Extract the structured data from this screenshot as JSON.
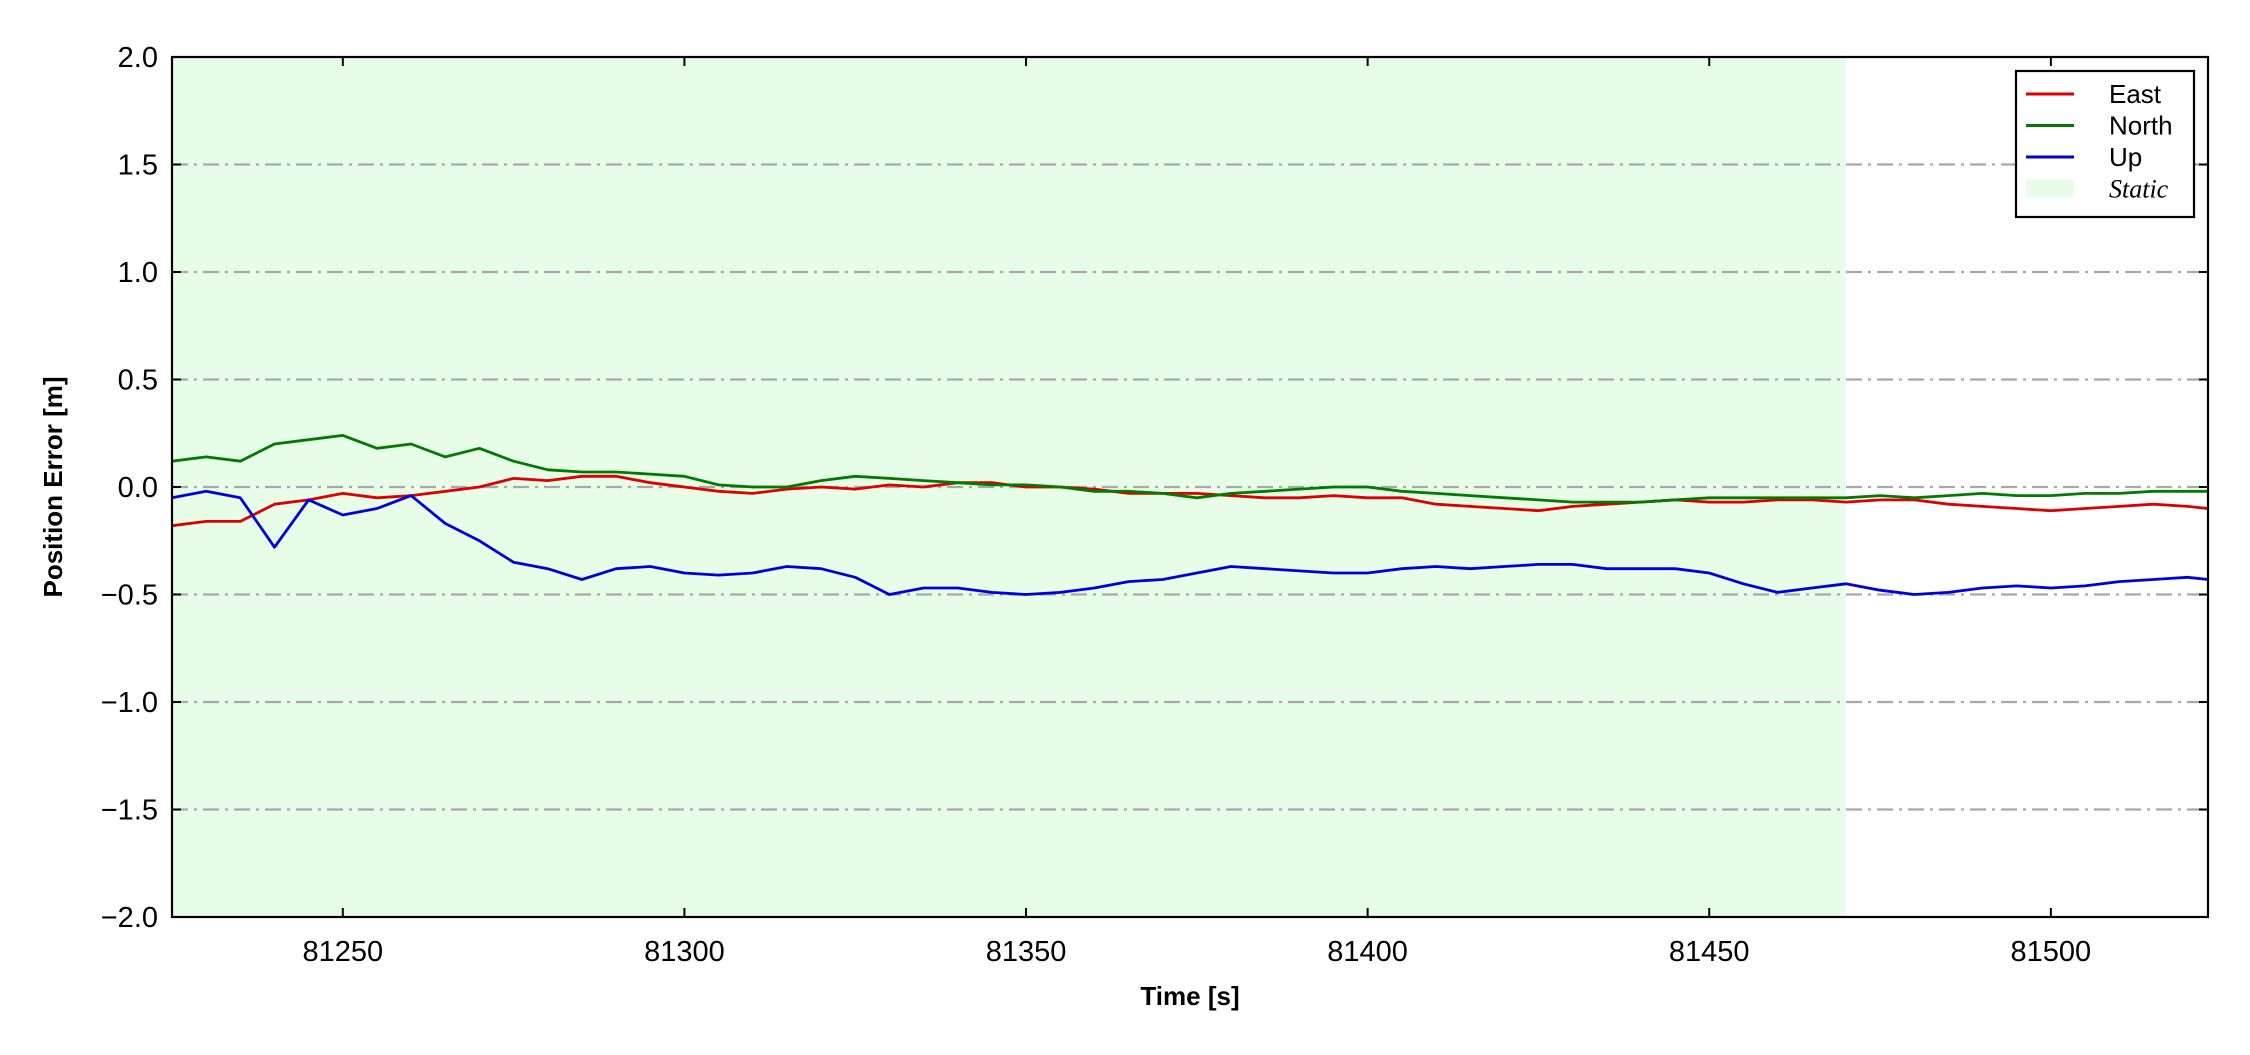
{
  "chart_data": {
    "type": "line",
    "title": "",
    "xlabel": "Time [s]",
    "ylabel": "Position Error [m]",
    "xlim": [
      81225,
      81523
    ],
    "ylim": [
      -2.0,
      2.0
    ],
    "x_ticks": [
      81250,
      81300,
      81350,
      81400,
      81450,
      81500
    ],
    "x_tick_labels": [
      "81250",
      "81300",
      "81350",
      "81400",
      "81450",
      "81500"
    ],
    "y_ticks": [
      -2.0,
      -1.5,
      -1.0,
      -0.5,
      0.0,
      0.5,
      1.0,
      1.5,
      2.0
    ],
    "y_tick_labels": [
      "−2.0",
      "−1.5",
      "−1.0",
      "−0.5",
      "0.0",
      "0.5",
      "1.0",
      "1.5",
      "2.0"
    ],
    "grid": "horizontal, dash-dot, gray",
    "legend_position": "top-right",
    "shaded_region": {
      "name": "Static",
      "x_range": [
        81225,
        81470
      ],
      "color": "#e8fde8"
    },
    "x": [
      81225,
      81230,
      81235,
      81240,
      81245,
      81250,
      81255,
      81260,
      81265,
      81270,
      81275,
      81280,
      81285,
      81290,
      81295,
      81300,
      81305,
      81310,
      81315,
      81320,
      81325,
      81330,
      81335,
      81340,
      81345,
      81350,
      81355,
      81360,
      81365,
      81370,
      81375,
      81380,
      81385,
      81390,
      81395,
      81400,
      81405,
      81410,
      81415,
      81420,
      81425,
      81430,
      81435,
      81440,
      81445,
      81450,
      81455,
      81460,
      81465,
      81470,
      81475,
      81480,
      81485,
      81490,
      81495,
      81500,
      81505,
      81510,
      81515,
      81520,
      81523
    ],
    "series": [
      {
        "name": "East",
        "color": "#dd0000",
        "values": [
          -0.18,
          -0.16,
          -0.16,
          -0.08,
          -0.06,
          -0.03,
          -0.05,
          -0.04,
          -0.02,
          0.0,
          0.04,
          0.03,
          0.05,
          0.05,
          0.02,
          0.0,
          -0.02,
          -0.03,
          -0.01,
          0.0,
          -0.01,
          0.01,
          0.0,
          0.02,
          0.02,
          0.0,
          0.0,
          -0.01,
          -0.03,
          -0.03,
          -0.03,
          -0.04,
          -0.05,
          -0.05,
          -0.04,
          -0.05,
          -0.05,
          -0.08,
          -0.09,
          -0.1,
          -0.11,
          -0.09,
          -0.08,
          -0.07,
          -0.06,
          -0.07,
          -0.07,
          -0.06,
          -0.06,
          -0.07,
          -0.06,
          -0.06,
          -0.08,
          -0.09,
          -0.1,
          -0.11,
          -0.1,
          -0.09,
          -0.08,
          -0.09,
          -0.1
        ]
      },
      {
        "name": "North",
        "color": "#007a00",
        "values": [
          0.12,
          0.14,
          0.12,
          0.2,
          0.22,
          0.24,
          0.18,
          0.2,
          0.14,
          0.18,
          0.12,
          0.08,
          0.07,
          0.07,
          0.06,
          0.05,
          0.01,
          0.0,
          0.0,
          0.03,
          0.05,
          0.04,
          0.03,
          0.02,
          0.01,
          0.01,
          0.0,
          -0.02,
          -0.02,
          -0.03,
          -0.05,
          -0.03,
          -0.02,
          -0.01,
          0.0,
          0.0,
          -0.02,
          -0.03,
          -0.04,
          -0.05,
          -0.06,
          -0.07,
          -0.07,
          -0.07,
          -0.06,
          -0.05,
          -0.05,
          -0.05,
          -0.05,
          -0.05,
          -0.04,
          -0.05,
          -0.04,
          -0.03,
          -0.04,
          -0.04,
          -0.03,
          -0.03,
          -0.02,
          -0.02,
          -0.02
        ]
      },
      {
        "name": "Up",
        "color": "#0000dd",
        "values": [
          -0.05,
          -0.02,
          -0.05,
          -0.28,
          -0.06,
          -0.13,
          -0.1,
          -0.04,
          -0.17,
          -0.25,
          -0.35,
          -0.38,
          -0.43,
          -0.38,
          -0.37,
          -0.4,
          -0.41,
          -0.4,
          -0.37,
          -0.38,
          -0.42,
          -0.5,
          -0.47,
          -0.47,
          -0.49,
          -0.5,
          -0.49,
          -0.47,
          -0.44,
          -0.43,
          -0.4,
          -0.37,
          -0.38,
          -0.39,
          -0.4,
          -0.4,
          -0.38,
          -0.37,
          -0.38,
          -0.37,
          -0.36,
          -0.36,
          -0.38,
          -0.38,
          -0.38,
          -0.4,
          -0.45,
          -0.49,
          -0.47,
          -0.45,
          -0.48,
          -0.5,
          -0.49,
          -0.47,
          -0.46,
          -0.47,
          -0.46,
          -0.44,
          -0.43,
          -0.42,
          -0.43
        ]
      }
    ],
    "legend_entries": [
      {
        "name": "East",
        "color": "#dd0000",
        "kind": "line"
      },
      {
        "name": "North",
        "color": "#007a00",
        "kind": "line"
      },
      {
        "name": "Up",
        "color": "#0000dd",
        "kind": "line"
      },
      {
        "name": "Static",
        "color": "#e8fde8",
        "kind": "patch"
      }
    ]
  }
}
